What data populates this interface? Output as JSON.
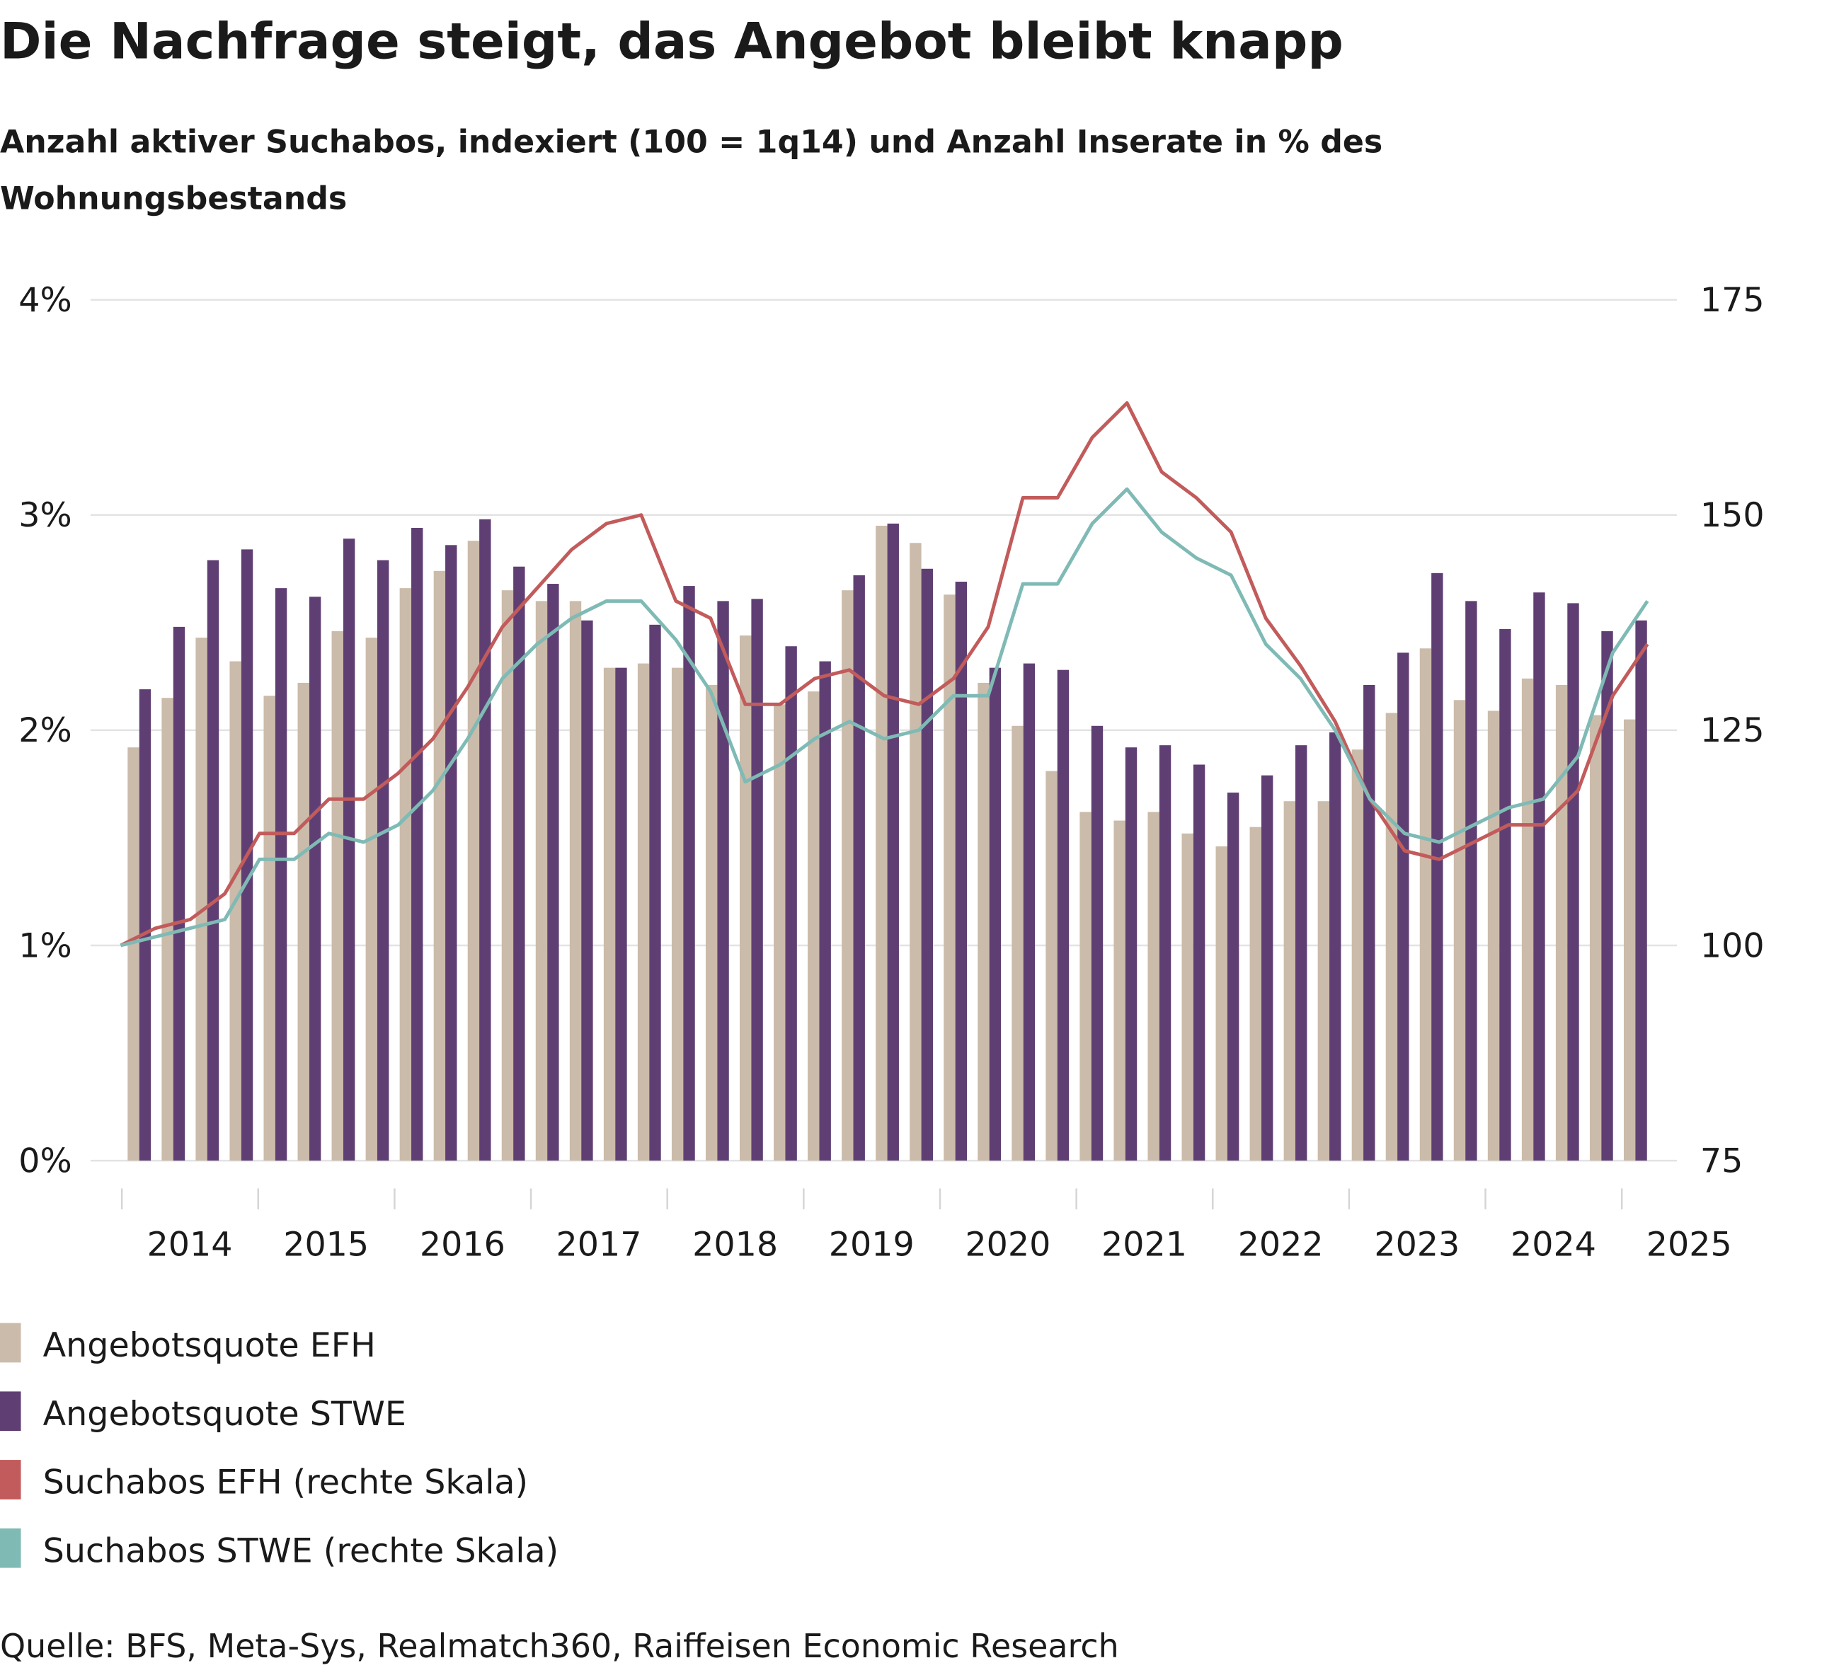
{
  "title": "Die Nachfrage steigt, das Angebot bleibt knapp",
  "subtitle_lines": [
    "Anzahl aktiver Suchabos, indexiert (100 = 1q14) und Anzahl Inserate in % des",
    "Wohnungsbestands"
  ],
  "source": "Quelle: BFS, Meta-Sys, Realmatch360, Raiffeisen Economic Research",
  "chart_data": {
    "type": "bar+line",
    "title": "Die Nachfrage steigt, das Angebot bleibt knapp",
    "frequency": "quarterly, 1q14 to 1q25",
    "x_tick_labels": [
      "2014",
      "2015",
      "2016",
      "2017",
      "2018",
      "2019",
      "2020",
      "2021",
      "2022",
      "2023",
      "2024",
      "2025"
    ],
    "y_left": {
      "ticks": [
        "0%",
        "1%",
        "2%",
        "3%",
        "4%"
      ],
      "range": [
        0,
        4
      ],
      "unit": "%"
    },
    "y_right": {
      "ticks": [
        "75",
        "100",
        "125",
        "150",
        "175"
      ],
      "range": [
        75,
        175
      ]
    },
    "grid": true,
    "legend_position": "bottom",
    "series": [
      {
        "name": "Angebotsquote EFH",
        "kind": "bar",
        "axis": "left",
        "color": "#cbbbaa",
        "values": [
          1.92,
          2.15,
          2.43,
          2.32,
          2.16,
          2.22,
          2.46,
          2.43,
          2.66,
          2.74,
          2.88,
          2.65,
          2.6,
          2.6,
          2.29,
          2.31,
          2.29,
          2.21,
          2.44,
          2.12,
          2.18,
          2.65,
          2.95,
          2.87,
          2.63,
          2.22,
          2.02,
          1.81,
          1.62,
          1.58,
          1.62,
          1.52,
          1.46,
          1.55,
          1.67,
          1.67,
          1.91,
          2.08,
          2.38,
          2.14,
          2.09,
          2.24,
          2.21,
          2.07,
          2.05
        ]
      },
      {
        "name": "Angebotsquote STWE",
        "kind": "bar",
        "axis": "left",
        "color": "#5f3f73",
        "values": [
          2.19,
          2.48,
          2.79,
          2.84,
          2.66,
          2.62,
          2.89,
          2.79,
          2.94,
          2.86,
          2.98,
          2.76,
          2.68,
          2.51,
          2.29,
          2.49,
          2.67,
          2.6,
          2.61,
          2.39,
          2.32,
          2.72,
          2.96,
          2.75,
          2.69,
          2.29,
          2.31,
          2.28,
          2.02,
          1.92,
          1.93,
          1.84,
          1.71,
          1.79,
          1.93,
          1.99,
          2.21,
          2.36,
          2.73,
          2.6,
          2.47,
          2.64,
          2.59,
          2.46,
          2.51
        ]
      },
      {
        "name": "Suchabos EFH (rechte Skala)",
        "kind": "line",
        "axis": "right",
        "color": "#c25b5b",
        "values": [
          100,
          102,
          103,
          106,
          113,
          113,
          117,
          117,
          120,
          124,
          130,
          137,
          141.5,
          146,
          149,
          150,
          140,
          138,
          128,
          128,
          131,
          132,
          129,
          128,
          131,
          137,
          152,
          152,
          159,
          163,
          155,
          152,
          148,
          138,
          132.5,
          126,
          117,
          111,
          110,
          112,
          114,
          114,
          118,
          129,
          135
        ]
      },
      {
        "name": "Suchabos STWE (rechte Skala)",
        "kind": "line",
        "axis": "right",
        "color": "#7fbab5",
        "values": [
          100,
          101,
          102,
          103,
          110,
          110,
          113,
          112,
          114,
          118,
          124,
          131,
          135,
          138,
          140,
          140,
          135.5,
          129.5,
          119,
          121,
          124,
          126,
          124,
          125,
          129,
          129,
          142,
          142,
          149,
          153,
          148,
          145,
          143,
          135,
          131,
          125,
          117,
          113,
          112,
          114,
          116,
          117,
          122,
          134,
          140
        ]
      }
    ]
  }
}
